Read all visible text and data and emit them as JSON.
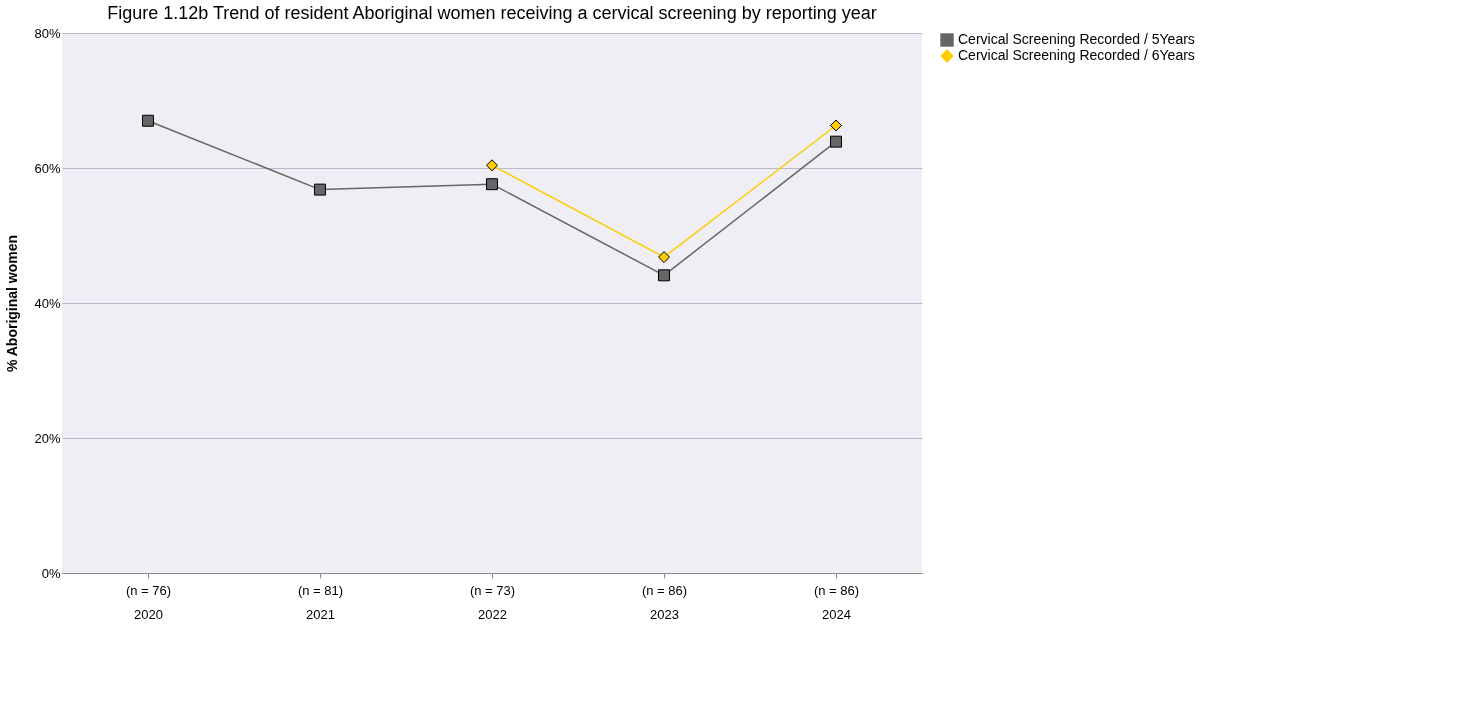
{
  "chart_data": {
    "type": "line",
    "title": "Figure 1.12b Trend of resident Aboriginal women receiving a cervical screening by reporting year",
    "ylabel": "% Aboriginal women",
    "categories": [
      "(n = 76)\n2020",
      "(n = 81)\n2021",
      "(n = 73)\n2022",
      "(n = 86)\n2023",
      "(n = 86)\n2024"
    ],
    "series": [
      {
        "name": "Cervical Screening Recorded / 5Years",
        "color": "#666666",
        "marker": "square",
        "values": [
          67.0,
          56.8,
          57.6,
          44.1,
          63.9
        ]
      },
      {
        "name": "Cervical Screening Recorded / 6Years",
        "color": "#ffcc00",
        "marker": "diamond",
        "values": [
          null,
          null,
          60.4,
          46.8,
          66.3
        ]
      }
    ],
    "ylim": [
      0,
      80
    ],
    "yticks": [
      {
        "value": 0,
        "label": "0%"
      },
      {
        "value": 20,
        "label": "20%"
      },
      {
        "value": 40,
        "label": "40%"
      },
      {
        "value": 60,
        "label": "60%"
      },
      {
        "value": 80,
        "label": "80%"
      }
    ],
    "grid": "y",
    "legend": "right",
    "line_style": "solid"
  }
}
